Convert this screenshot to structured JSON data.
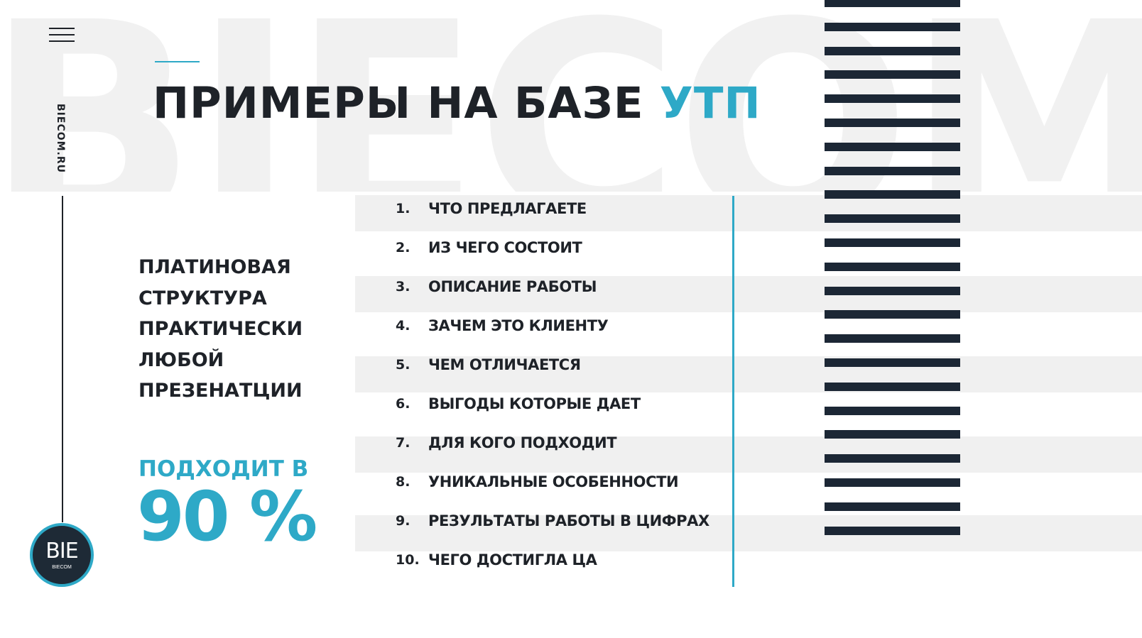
{
  "brand": {
    "watermark": "BIECOM",
    "side_url": "BIECOM.RU",
    "logo_text": "BIE",
    "logo_subtext": "BIECOM"
  },
  "title": {
    "main": "ПРИМЕРЫ НА БАЗЕ",
    "accent": "УТП"
  },
  "left_block": {
    "lines": [
      "ПЛАТИНОВАЯ",
      "СТРУКТУРА",
      "ПРАКТИЧЕСКИ",
      "ЛЮБОЙ",
      "ПРЕЗЕНАТЦИИ"
    ],
    "suits_label": "ПОДХОДИТ В",
    "percent": "90 %"
  },
  "list": [
    {
      "num": "1.",
      "label": "ЧТО ПРЕДЛАГАЕТЕ"
    },
    {
      "num": "2.",
      "label": "ИЗ ЧЕГО СОСТОИТ"
    },
    {
      "num": "3.",
      "label": "ОПИСАНИЕ РАБОТЫ"
    },
    {
      "num": "4.",
      "label": "ЗАЧЕМ ЭТО КЛИЕНТУ"
    },
    {
      "num": "5.",
      "label": "ЧЕМ ОТЛИЧАЕТСЯ"
    },
    {
      "num": "6.",
      "label": "ВЫГОДЫ КОТОРЫЕ ДАЕТ"
    },
    {
      "num": "7.",
      "label": "ДЛЯ КОГО ПОДХОДИТ"
    },
    {
      "num": "8.",
      "label": "УНИКАЛЬНЫЕ ОСОБЕННОСТИ"
    },
    {
      "num": "9.",
      "label": "РЕЗУЛЬТАТЫ РАБОТЫ В ЦИФРАХ"
    },
    {
      "num": "10.",
      "label": "ЧЕГО ДОСТИГЛА ЦА"
    }
  ],
  "colors": {
    "accent": "#2ea9c7",
    "dark": "#1e2228",
    "stripe": "#f0f0f0",
    "bars": "#1c2735"
  },
  "icons": [
    "hamburger-menu-icon"
  ]
}
